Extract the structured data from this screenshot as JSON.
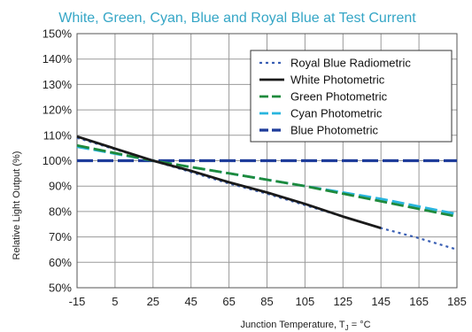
{
  "chart_data": {
    "type": "line",
    "title": "White, Green, Cyan, Blue and Royal Blue at Test Current",
    "xlabel": "Junction Temperature, T",
    "xlabel_subscript": "J",
    "xlabel_suffix": " = °C",
    "ylabel": "Relative Light Output (%)",
    "xlim": [
      -15,
      185
    ],
    "ylim": [
      50,
      150
    ],
    "x_ticks": [
      "-15",
      "5",
      "25",
      "45",
      "65",
      "85",
      "105",
      "125",
      "145",
      "165",
      "185"
    ],
    "y_ticks": [
      "50%",
      "60%",
      "70%",
      "80%",
      "90%",
      "100%",
      "110%",
      "120%",
      "130%",
      "140%",
      "150%"
    ],
    "grid": true,
    "legend_position": "top-right",
    "series": [
      {
        "name": "Royal Blue Radiometric",
        "color": "#3a5fb4",
        "style": "dotted",
        "x": [
          -15,
          25,
          45,
          65,
          85,
          105,
          125,
          145,
          165,
          185
        ],
        "y": [
          109,
          100,
          95.5,
          91,
          87,
          82.5,
          78,
          73.5,
          69.5,
          65
        ]
      },
      {
        "name": "White Photometric",
        "color": "#1a1a1a",
        "style": "solid",
        "x": [
          -15,
          25,
          45,
          65,
          85,
          105,
          125,
          145
        ],
        "y": [
          109.5,
          100,
          96,
          91.5,
          87.5,
          83,
          78,
          73.5
        ]
      },
      {
        "name": "Green Photometric",
        "color": "#1e8a3c",
        "style": "dashed",
        "x": [
          -15,
          25,
          45,
          65,
          85,
          105,
          125,
          145,
          165,
          185
        ],
        "y": [
          106,
          100,
          97.5,
          95,
          92.5,
          90,
          87,
          84,
          81,
          78
        ]
      },
      {
        "name": "Cyan Photometric",
        "color": "#29b5de",
        "style": "dashed",
        "x": [
          -15,
          25,
          45,
          65,
          85,
          105,
          125,
          145,
          165,
          185
        ],
        "y": [
          105.5,
          100,
          97.5,
          95,
          92.5,
          90,
          87.5,
          85,
          82,
          79
        ]
      },
      {
        "name": "Blue Photometric",
        "color": "#1e3c9a",
        "style": "longdash",
        "x": [
          -15,
          25,
          45,
          65,
          85,
          105,
          125,
          145,
          165,
          185
        ],
        "y": [
          100,
          100,
          100,
          100,
          100,
          100,
          100,
          100,
          100,
          100
        ]
      }
    ]
  }
}
